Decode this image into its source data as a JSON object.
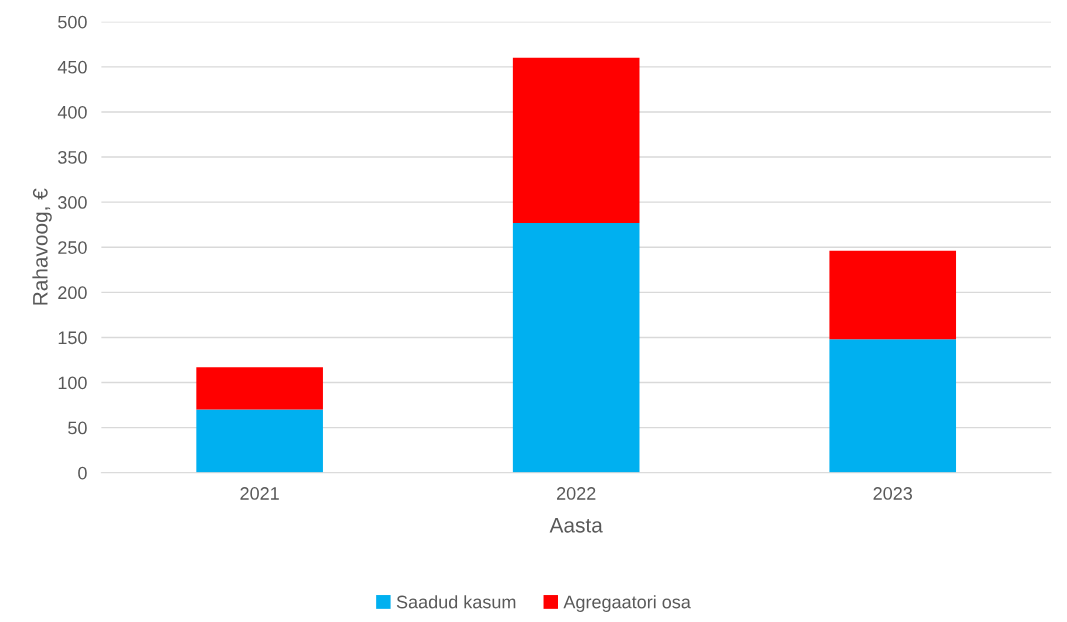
{
  "chart_data": {
    "type": "bar",
    "stacked": true,
    "xlabel": "Aasta",
    "ylabel": "Rahavoog, €",
    "categories": [
      "2021",
      "2022",
      "2023"
    ],
    "series": [
      {
        "name": "Saadud kasum",
        "color": "#00b0f0",
        "values": [
          70,
          277,
          148
        ]
      },
      {
        "name": "Agregaatori osa",
        "color": "#ff0000",
        "values": [
          47,
          183,
          98
        ]
      }
    ],
    "ylim": [
      0,
      500
    ],
    "yticks": [
      0,
      50,
      100,
      150,
      200,
      250,
      300,
      350,
      400,
      450,
      500
    ],
    "grid": "y",
    "legend": "bottom"
  }
}
